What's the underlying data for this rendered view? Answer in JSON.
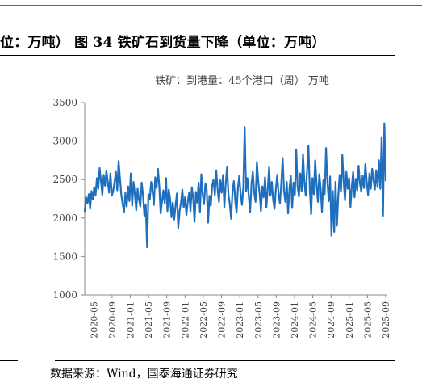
{
  "header": {
    "title": "位：万吨） 图 34 铁矿石到货量下降（单位：万吨）"
  },
  "footer": {
    "source": "数据来源：Wind，国泰海通证券研究"
  },
  "colors": {
    "series": "#1f6fbf",
    "axis": "#888888",
    "text": "#444444"
  },
  "chart_data": {
    "type": "line",
    "title": "",
    "series_label": "铁矿：到港量：45个港口（周） 万吨",
    "xlabel": "",
    "ylabel": "",
    "ylim": [
      1000,
      3500
    ],
    "yticks": [
      1000,
      1500,
      2000,
      2500,
      3000,
      3500
    ],
    "xticks": [
      "2020-05",
      "2020-09",
      "2021-01",
      "2021-05",
      "2021-09",
      "2022-01",
      "2022-05",
      "2022-09",
      "2023-01",
      "2023-05",
      "2023-09",
      "2024-01",
      "2024-05",
      "2024-09",
      "2025-01",
      "2025-05",
      "2025-09"
    ],
    "grid": false,
    "legend": "none",
    "series": [
      {
        "values": [
          2080,
          2270,
          2190,
          2310,
          2120,
          2350,
          2240,
          2400,
          2290,
          2520,
          2380,
          2650,
          2480,
          2300,
          2560,
          2420,
          2610,
          2470,
          2330,
          2580,
          2290,
          2350,
          2470,
          2600,
          2360,
          2740,
          2520,
          2300,
          2180,
          2080,
          2330,
          2150,
          2410,
          2220,
          2580,
          2160,
          2470,
          2310,
          2100,
          2380,
          2240,
          2150,
          2460,
          2300,
          2030,
          2180,
          1620,
          2310,
          2240,
          2470,
          2350,
          2170,
          2530,
          2390,
          2640,
          2420,
          2060,
          2210,
          2360,
          2190,
          2520,
          2090,
          2370,
          2250,
          2010,
          2200,
          1980,
          2160,
          2320,
          1870,
          2090,
          2200,
          2370,
          2140,
          2270,
          2040,
          2210,
          2330,
          2090,
          2400,
          2260,
          1950,
          2340,
          2200,
          2460,
          2080,
          2570,
          2310,
          2180,
          2450,
          2360,
          1940,
          2290,
          2160,
          2420,
          2500,
          2300,
          2620,
          2380,
          2210,
          2490,
          2330,
          2560,
          2140,
          2450,
          2660,
          2310,
          2180,
          1990,
          2350,
          2480,
          2230,
          2070,
          2390,
          2550,
          2310,
          2170,
          2410,
          3180,
          2350,
          2520,
          2280,
          2080,
          2440,
          2600,
          2330,
          2210,
          2730,
          2470,
          2320,
          2090,
          2410,
          2270,
          2530,
          2140,
          2380,
          2660,
          2290,
          2470,
          2230,
          2120,
          2380,
          2560,
          2310,
          2190,
          2450,
          2780,
          2350,
          2210,
          2470,
          2060,
          2380,
          2550,
          2130,
          2460,
          2300,
          2890,
          2410,
          2280,
          2580,
          2350,
          2830,
          2470,
          2290,
          2610,
          2940,
          2380,
          2050,
          2520,
          2310,
          2750,
          2440,
          2210,
          2570,
          2390,
          2080,
          2490,
          2310,
          2910,
          2460,
          2220,
          2540,
          1770,
          2350,
          1820,
          2470,
          1900,
          2280,
          2560,
          2340,
          2820,
          2470,
          2230,
          2600,
          2380,
          2520,
          2140,
          2410,
          2600,
          2270,
          2510,
          2360,
          2680,
          2450,
          2340,
          2550,
          2390,
          2700,
          2470,
          2300,
          2580,
          2380,
          2640,
          2490,
          2370,
          2620,
          2400,
          2750,
          2380,
          3050,
          2030,
          3230,
          2480
        ]
      }
    ]
  }
}
